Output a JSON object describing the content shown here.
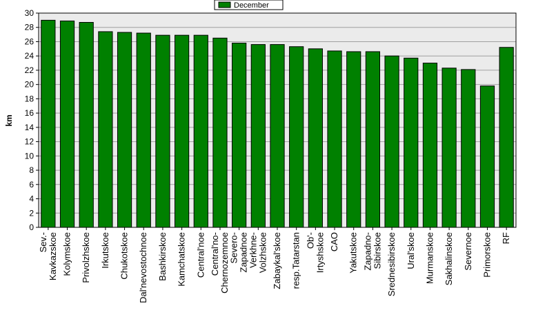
{
  "chart_data": {
    "type": "bar",
    "title": "",
    "xlabel": "",
    "ylabel": "km",
    "ylim": [
      0,
      30
    ],
    "ytick_step": 2,
    "grid": true,
    "legend_placement": "top-center",
    "categories": [
      "Sev.-Kavkazskoe",
      "Kolymskoe",
      "Privolzhskoe",
      "Irkutskoe",
      "Chukotskoe",
      "Dal'nevostochnoe",
      "Bashkirskoe",
      "Kamchatskoe",
      "Central'noe",
      "Central'no-Chernozemnoe",
      "Severo-Zapadnoe",
      "Verkhne-Volzhskoe",
      "Zabaykal'skoe",
      "resp.Tatarstan",
      "Ob'-Irtyshskoe",
      "CAO",
      "Yakutskoe",
      "Zapadno-Sibirskoe",
      "Srednesibirskoe",
      "Ural'skoe",
      "Murmanskoe",
      "Sakhalinskoe",
      "Severnoe",
      "Primorskoe",
      "RF"
    ],
    "category_lines": [
      [
        "Sev.-",
        "Kavkazskoe"
      ],
      [
        "Kolymskoe"
      ],
      [
        "Privolzhskoe"
      ],
      [
        "Irkutskoe"
      ],
      [
        "Chukotskoe"
      ],
      [
        "Dal'nevostochnoe"
      ],
      [
        "Bashkirskoe"
      ],
      [
        "Kamchatskoe"
      ],
      [
        "Central'noe"
      ],
      [
        "Central'no-",
        "Chernozemnoe"
      ],
      [
        "Severo-",
        "Zapadnoe"
      ],
      [
        "Verkhne-",
        "Volzhskoe"
      ],
      [
        "Zabaykal'skoe"
      ],
      [
        "resp.Tatarstan"
      ],
      [
        "Ob'-",
        "Irtyshskoe"
      ],
      [
        "CAO"
      ],
      [
        "Yakutskoe"
      ],
      [
        "Zapadno-",
        "Sibirskoe"
      ],
      [
        "Srednesibirskoe"
      ],
      [
        "Ural'skoe"
      ],
      [
        "Murmanskoe"
      ],
      [
        "Sakhalinskoe"
      ],
      [
        "Severnoe"
      ],
      [
        "Primorskoe"
      ],
      [
        "RF"
      ]
    ],
    "series": [
      {
        "name": "December",
        "color": "#008000",
        "values": [
          29.0,
          28.9,
          28.7,
          27.4,
          27.3,
          27.2,
          26.9,
          26.9,
          26.9,
          26.5,
          25.8,
          25.6,
          25.6,
          25.3,
          25.0,
          24.7,
          24.6,
          24.6,
          24.0,
          23.7,
          23.0,
          22.3,
          22.1,
          19.8,
          25.2
        ]
      }
    ],
    "colors": {
      "plot_background": "#ebebeb",
      "gridline": "#a0a0a0",
      "bar_stroke": "#000000"
    }
  }
}
